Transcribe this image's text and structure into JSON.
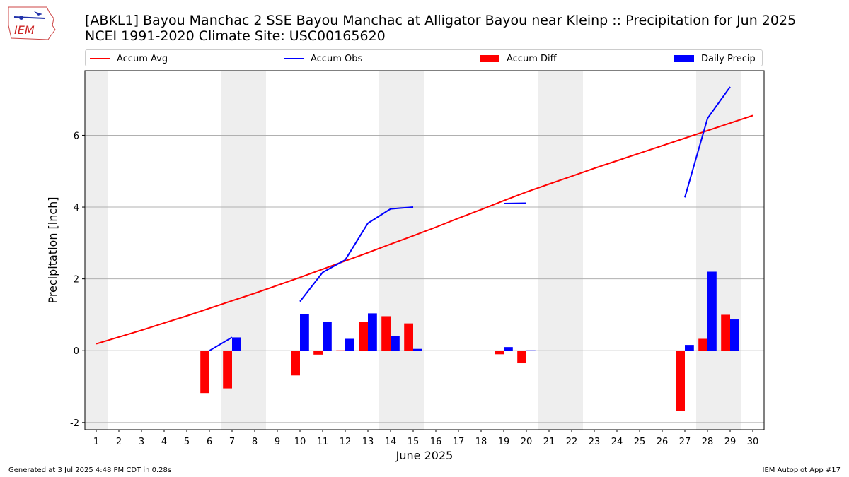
{
  "header": {
    "logo_text": "IEM",
    "title": "[ABKL1] Bayou Manchac 2 SSE Bayou Manchac at Alligator Bayou near Kleinp :: Precipitation for Jun 2025",
    "subtitle": "NCEI 1991-2020 Climate Site: USC00165620"
  },
  "legend": {
    "accum_avg": "Accum Avg",
    "accum_obs": "Accum Obs",
    "accum_diff": "Accum Diff",
    "daily_precip": "Daily Precip"
  },
  "footer": {
    "generated": "Generated at 3 Jul 2025 4:48 PM CDT in 0.28s",
    "app": "IEM Autoplot App #17"
  },
  "chart_data": {
    "type": "bar",
    "xlabel": "June 2025",
    "ylabel": "Precipitation [inch]",
    "xlim": [
      0.5,
      30.5
    ],
    "ylim": [
      -2.2,
      7.8
    ],
    "yticks": [
      -2,
      0,
      2,
      4,
      6
    ],
    "grid": "horizontal",
    "legend_position": "top",
    "weekend_shading": [
      [
        0.5,
        1.5
      ],
      [
        6.5,
        8.5
      ],
      [
        13.5,
        15.5
      ],
      [
        20.5,
        22.5
      ],
      [
        27.5,
        29.5
      ]
    ],
    "days": [
      1,
      2,
      3,
      4,
      5,
      6,
      7,
      8,
      9,
      10,
      11,
      12,
      13,
      14,
      15,
      16,
      17,
      18,
      19,
      20,
      21,
      22,
      23,
      24,
      25,
      26,
      27,
      28,
      29,
      30
    ],
    "colors": {
      "accum_avg": "#ff0000",
      "accum_obs": "#0000ff",
      "accum_diff": "#ff0000",
      "daily_precip": "#0000ff",
      "shading": "#eeeeee"
    },
    "series": [
      {
        "name": "Accum Avg",
        "kind": "line",
        "values": [
          0.19,
          0.38,
          0.57,
          0.77,
          0.97,
          1.18,
          1.39,
          1.6,
          1.82,
          2.04,
          2.27,
          2.5,
          2.73,
          2.97,
          3.2,
          3.44,
          3.69,
          3.93,
          4.18,
          4.42,
          4.64,
          4.86,
          5.08,
          5.29,
          5.5,
          5.71,
          5.92,
          6.13,
          6.34,
          6.55
        ]
      },
      {
        "name": "Accum Obs",
        "kind": "line",
        "values": [
          null,
          null,
          null,
          null,
          null,
          0.0,
          0.37,
          null,
          null,
          1.37,
          2.18,
          2.53,
          3.55,
          3.95,
          4.0,
          null,
          null,
          null,
          4.1,
          4.11,
          null,
          null,
          null,
          null,
          null,
          null,
          4.27,
          6.47,
          7.35,
          null
        ]
      },
      {
        "name": "Accum Diff",
        "kind": "bar",
        "values": [
          null,
          null,
          null,
          null,
          null,
          -1.18,
          -1.05,
          null,
          null,
          -0.69,
          -0.11,
          0.01,
          0.8,
          0.96,
          0.76,
          null,
          null,
          null,
          -0.1,
          -0.35,
          null,
          null,
          null,
          null,
          null,
          null,
          -1.67,
          0.33,
          1.0,
          null
        ]
      },
      {
        "name": "Daily Precip",
        "kind": "bar",
        "values": [
          null,
          null,
          null,
          null,
          null,
          0.0,
          0.37,
          null,
          null,
          1.02,
          0.8,
          0.33,
          1.04,
          0.4,
          0.05,
          null,
          null,
          null,
          0.1,
          0.01,
          null,
          null,
          null,
          null,
          null,
          null,
          0.16,
          2.2,
          0.87,
          null
        ]
      }
    ]
  }
}
